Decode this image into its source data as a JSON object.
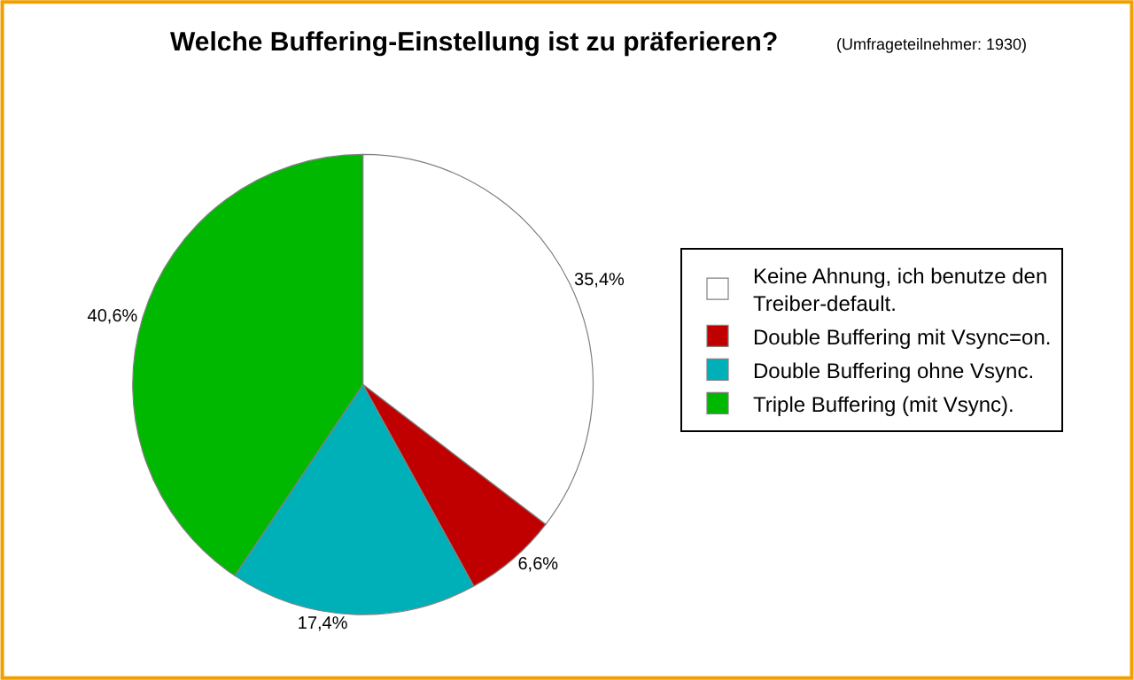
{
  "chart_data": {
    "type": "pie",
    "title": "Welche Buffering-Einstellung ist zu präferieren?",
    "subtitle": "(Umfrageteilnehmer: 1930)",
    "categories": [
      "Keine Ahnung, ich benutze den Treiber-default.",
      "Double Buffering mit Vsync=on.",
      "Double Buffering ohne Vsync.",
      "Triple Buffering (mit Vsync)."
    ],
    "values": [
      35.4,
      6.6,
      17.4,
      40.6
    ],
    "value_labels": [
      "35,4%",
      "6,6%",
      "17,4%",
      "40,6%"
    ],
    "colors": [
      "#ffffff",
      "#c00000",
      "#00b0b8",
      "#00b800"
    ],
    "legend": "right"
  }
}
